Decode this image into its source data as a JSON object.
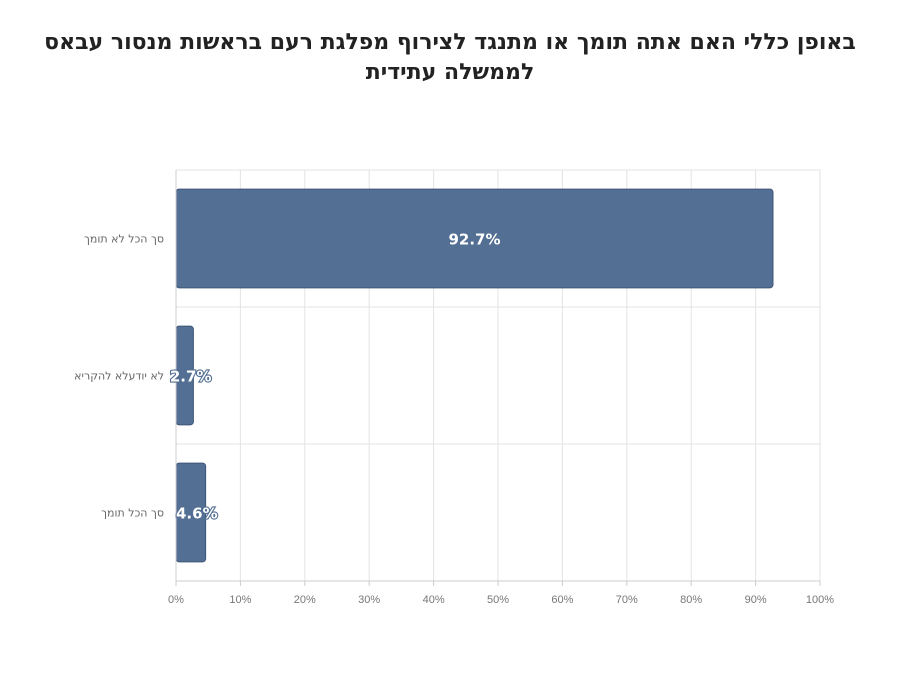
{
  "chart_data": {
    "type": "bar",
    "orientation": "horizontal",
    "title": "באופן כללי האם אתה תומך או מתנגד לצירוף מפלגת רעם בראשות מנסור עבאס לממשלה עתידית",
    "categories": [
      "סך הכל לא תומך",
      "לא יודעלא להקריא",
      "סך הכל תומך"
    ],
    "values": [
      92.7,
      2.7,
      4.6
    ],
    "data_labels": [
      "92.7%",
      "2.7%",
      "4.6%"
    ],
    "x_ticks": [
      "0%",
      "10%",
      "20%",
      "30%",
      "40%",
      "50%",
      "60%",
      "70%",
      "80%",
      "90%",
      "100%"
    ],
    "xlim": [
      0,
      100
    ],
    "grid": true,
    "legend": "none",
    "bar_color": "#536f93",
    "bar_border_color": "#3e5676"
  }
}
